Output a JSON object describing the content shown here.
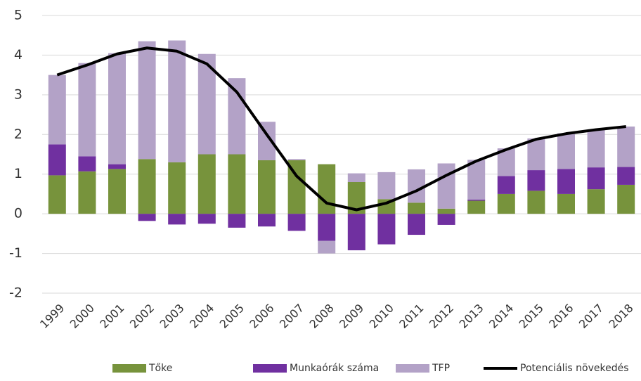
{
  "chart_data": {
    "type": "bar",
    "stacked": true,
    "categories": [
      "1999",
      "2000",
      "2001",
      "2002",
      "2003",
      "2004",
      "2005",
      "2006",
      "2007",
      "2008",
      "2009",
      "2010",
      "2011",
      "2012",
      "2013",
      "2014",
      "2015",
      "2016",
      "2017",
      "2018"
    ],
    "series": [
      {
        "name": "Tőke",
        "color": "#77933c",
        "values": [
          0.97,
          1.07,
          1.13,
          1.38,
          1.3,
          1.5,
          1.5,
          1.35,
          1.35,
          1.25,
          0.8,
          0.37,
          0.28,
          0.13,
          0.33,
          0.5,
          0.58,
          0.5,
          0.62,
          0.73
        ]
      },
      {
        "name": "Munkaórák száma",
        "color": "#7030a0",
        "values": [
          0.78,
          0.38,
          0.12,
          -0.18,
          -0.27,
          -0.25,
          -0.35,
          -0.32,
          -0.43,
          -0.68,
          -0.92,
          -0.77,
          -0.53,
          -0.28,
          0.03,
          0.45,
          0.52,
          0.63,
          0.55,
          0.45
        ]
      },
      {
        "name": "TFP",
        "color": "#b3a2c7",
        "values": [
          1.75,
          2.35,
          2.8,
          2.97,
          3.07,
          2.53,
          1.92,
          0.97,
          0.03,
          -0.32,
          0.22,
          0.68,
          0.84,
          1.14,
          1.0,
          0.7,
          0.8,
          0.9,
          0.95,
          1.02
        ]
      },
      {
        "name": "Potenciális növekedés",
        "color": "#000000",
        "type": "line",
        "values": [
          3.5,
          3.75,
          4.03,
          4.18,
          4.1,
          3.78,
          3.07,
          2.0,
          0.95,
          0.27,
          0.1,
          0.27,
          0.58,
          0.97,
          1.33,
          1.62,
          1.88,
          2.02,
          2.12,
          2.2
        ]
      }
    ],
    "ylim": [
      -2,
      5
    ],
    "yticks": [
      -2,
      -1,
      0,
      1,
      2,
      3,
      4,
      5
    ],
    "grid": true,
    "legend": "bottom"
  }
}
